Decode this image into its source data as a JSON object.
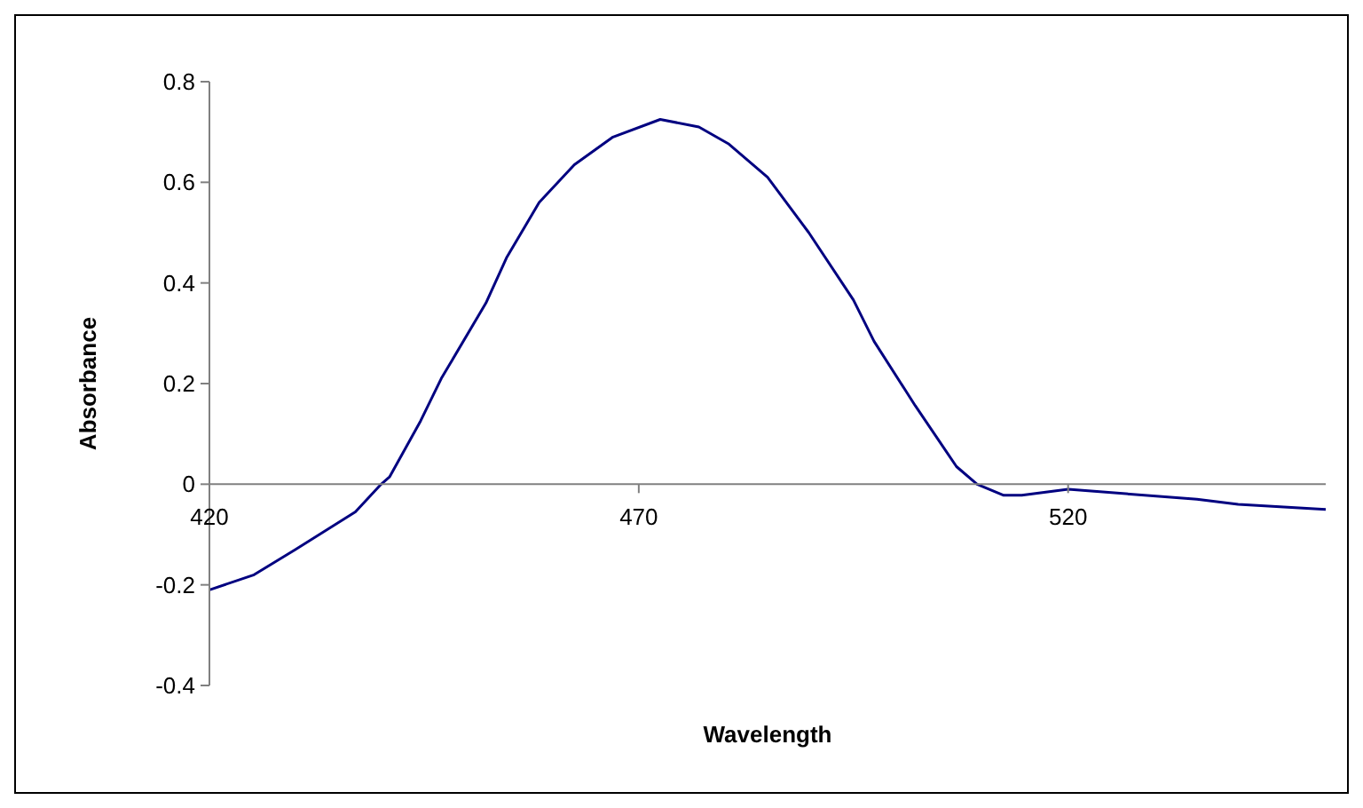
{
  "chart_data": {
    "type": "line",
    "xlabel": "Wavelength",
    "ylabel": "Absorbance",
    "xlim": [
      420,
      550
    ],
    "xticks": [
      420,
      470,
      520
    ],
    "ylim": [
      -0.4,
      0.8
    ],
    "yticks": [
      -0.4,
      -0.2,
      0,
      0.2,
      0.4,
      0.6,
      0.8
    ],
    "grid": false,
    "marker": "none",
    "line_style": "solid",
    "series": [
      {
        "color": "#000080",
        "x": [
          420,
          425.2,
          430,
          437,
          440,
          441,
          444.6,
          447,
          452.2,
          454.6,
          458.4,
          462.5,
          467,
          472.5,
          477,
          480.5,
          485,
          489.8,
          495,
          497.4,
          502.2,
          507,
          509.4,
          512.5,
          514.6,
          520,
          535,
          539.8,
          550
        ],
        "values": [
          -0.21,
          -0.18,
          -0.13,
          -0.055,
          0,
          0.015,
          0.126,
          0.21,
          0.36,
          0.45,
          0.56,
          0.635,
          0.69,
          0.725,
          0.71,
          0.676,
          0.61,
          0.5,
          0.366,
          0.284,
          0.156,
          0.035,
          0,
          -0.022,
          -0.022,
          -0.01,
          -0.03,
          -0.04,
          -0.05
        ]
      }
    ]
  }
}
